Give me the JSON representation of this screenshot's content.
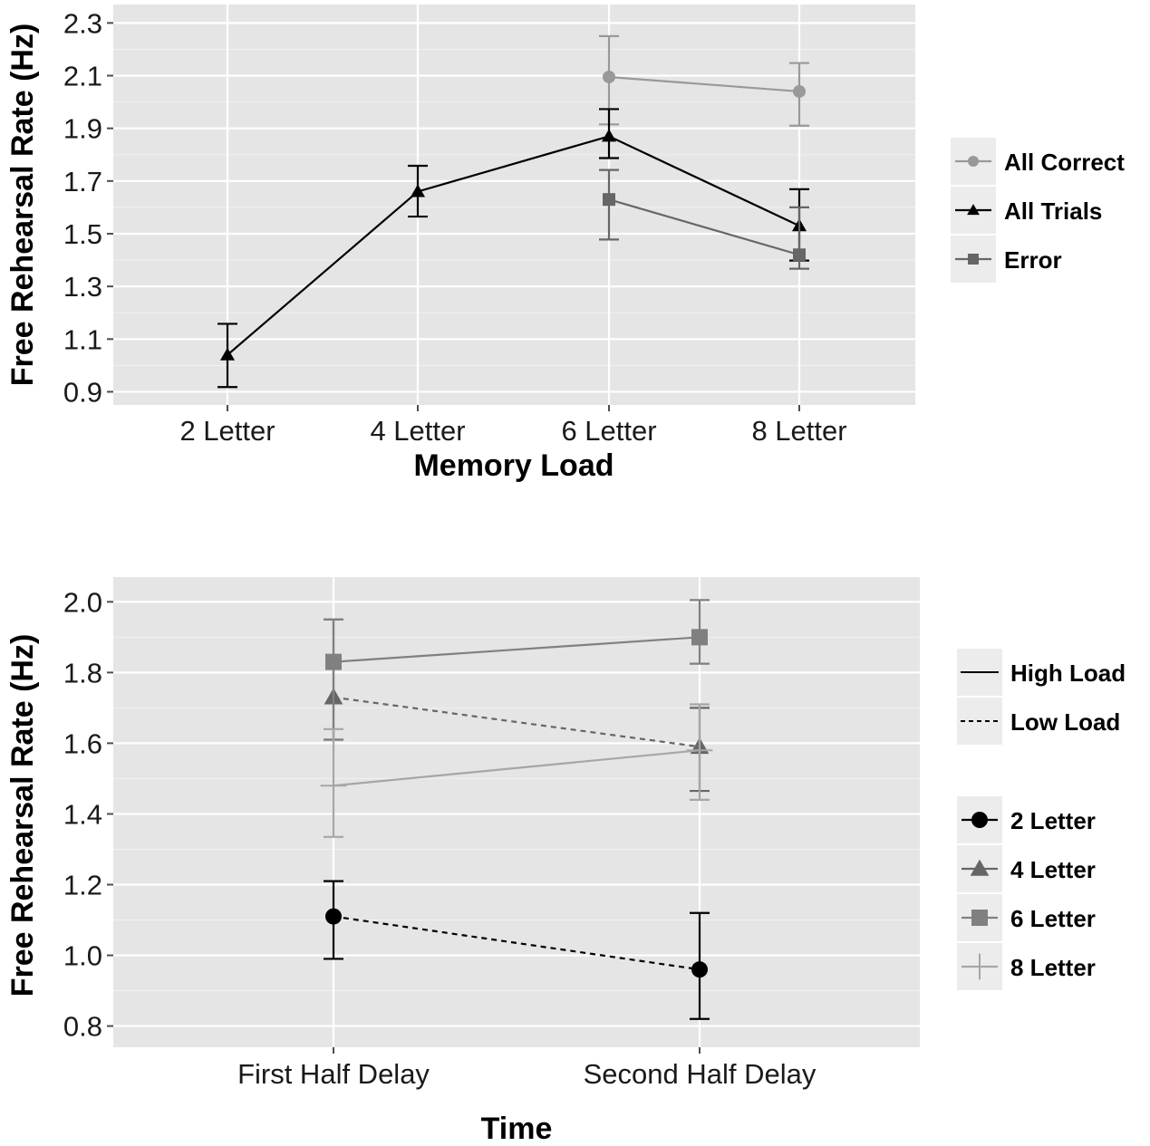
{
  "chart_data": [
    {
      "type": "line",
      "title": "",
      "xlabel": "Memory Load",
      "ylabel": "Free Rehearsal Rate (Hz)",
      "categories": [
        "2 Letter",
        "4 Letter",
        "6 Letter",
        "8 Letter"
      ],
      "ylim": [
        0.85,
        2.37
      ],
      "yticks": [
        "0.9",
        "1.1",
        "1.3",
        "1.5",
        "1.7",
        "1.9",
        "2.1",
        "2.3"
      ],
      "grid": true,
      "legend_position": "right",
      "series": [
        {
          "name": "All Correct",
          "color": "#999999",
          "marker": "circle",
          "line": "solid",
          "values": [
            null,
            null,
            2.095,
            2.04
          ],
          "err_low": [
            null,
            null,
            1.915,
            1.91
          ],
          "err_high": [
            null,
            null,
            2.25,
            2.148
          ]
        },
        {
          "name": "All Trials",
          "color": "#000000",
          "marker": "triangle",
          "line": "solid",
          "values": [
            1.04,
            1.66,
            1.87,
            1.53
          ],
          "err_low": [
            0.918,
            1.565,
            1.787,
            1.398
          ],
          "err_high": [
            1.158,
            1.758,
            1.973,
            1.669
          ]
        },
        {
          "name": "Error",
          "color": "#666666",
          "marker": "square",
          "line": "solid",
          "values": [
            null,
            null,
            1.63,
            1.42
          ],
          "err_low": [
            null,
            null,
            1.478,
            1.367
          ],
          "err_high": [
            null,
            null,
            1.742,
            1.6
          ]
        }
      ]
    },
    {
      "type": "line",
      "title": "",
      "xlabel": "Time",
      "ylabel": "Free Rehearsal Rate (Hz)",
      "categories": [
        "First Half Delay",
        "Second Half Delay"
      ],
      "ylim": [
        0.74,
        2.07
      ],
      "yticks": [
        "0.8",
        "1.0",
        "1.2",
        "1.4",
        "1.6",
        "1.8",
        "2.0"
      ],
      "grid": true,
      "legend_position": "right",
      "linetype_legend": [
        {
          "name": "High Load",
          "line": "solid"
        },
        {
          "name": "Low Load",
          "line": "dashed"
        }
      ],
      "series": [
        {
          "name": "2 Letter",
          "color": "#000000",
          "marker": "circle",
          "line": "dashed",
          "values": [
            1.11,
            0.96
          ],
          "err_low": [
            0.99,
            0.82
          ],
          "err_high": [
            1.21,
            1.12
          ]
        },
        {
          "name": "4 Letter",
          "color": "#666666",
          "marker": "triangle",
          "line": "dashed",
          "values": [
            1.73,
            1.59
          ],
          "err_low": [
            1.61,
            1.465
          ],
          "err_high": [
            1.95,
            1.7
          ]
        },
        {
          "name": "6 Letter",
          "color": "#808080",
          "marker": "square",
          "line": "solid",
          "values": [
            1.83,
            1.9
          ],
          "err_low": [
            1.61,
            1.825
          ],
          "err_high": [
            1.95,
            2.005
          ]
        },
        {
          "name": "8 Letter",
          "color": "#a6a6a6",
          "marker": "cross",
          "line": "solid",
          "values": [
            1.48,
            1.58
          ],
          "err_low": [
            1.335,
            1.44
          ],
          "err_high": [
            1.64,
            1.71
          ]
        }
      ]
    }
  ]
}
